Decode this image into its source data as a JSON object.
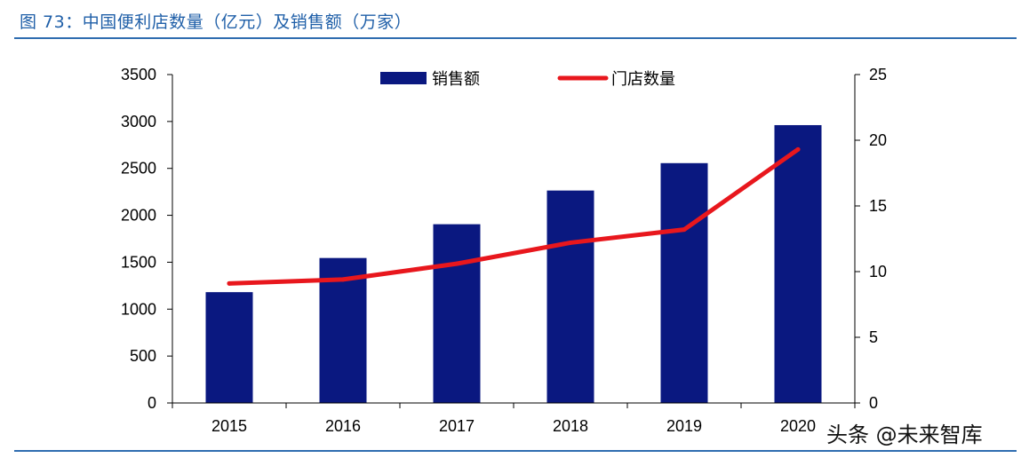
{
  "figure": {
    "title": "图 73：中国便利店数量（亿元）及销售额（万家）",
    "watermark": "头条 @未来智库"
  },
  "chart_data": {
    "type": "bar",
    "categories": [
      "2015",
      "2016",
      "2017",
      "2018",
      "2019",
      "2020"
    ],
    "series": [
      {
        "name": "销售额",
        "type": "bar",
        "axis": "left",
        "color": "#0a1880",
        "values": [
          1181,
          1545,
          1905,
          2264,
          2556,
          2961
        ]
      },
      {
        "name": "门店数量",
        "type": "line",
        "axis": "right",
        "color": "#e8171d",
        "values": [
          9.1,
          9.4,
          10.6,
          12.2,
          13.2,
          19.3
        ]
      }
    ],
    "y_left": {
      "min": 0,
      "max": 3500,
      "ticks": [
        0,
        500,
        1000,
        1500,
        2000,
        2500,
        3000,
        3500
      ]
    },
    "y_right": {
      "min": 0,
      "max": 25,
      "ticks": [
        0,
        5,
        10,
        15,
        20,
        25
      ]
    },
    "legend_position": "top-center",
    "grid": false
  }
}
